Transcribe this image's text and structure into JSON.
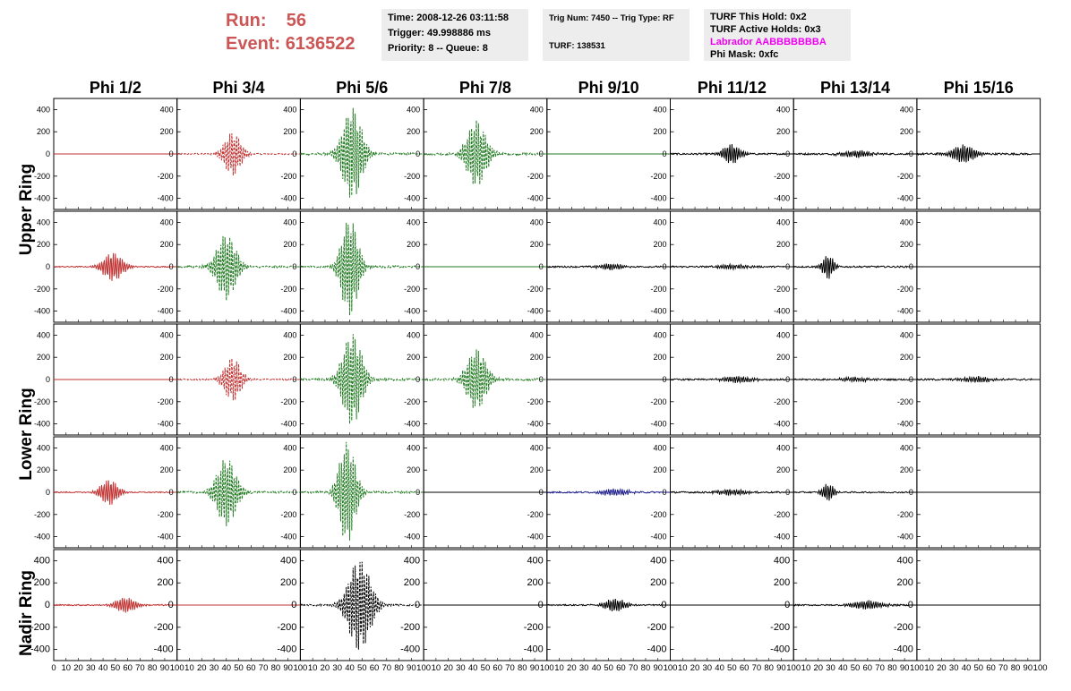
{
  "header": {
    "run_label": "Run:",
    "run_value": "56",
    "event_label": "Event:",
    "event_value": "6136522"
  },
  "info1": {
    "time": "Time: 2008-12-26 03:11:58",
    "trigger": "Trigger: 49.998886 ms",
    "priority": "Priority: 8 -- Queue: 8"
  },
  "info2": {
    "trig": "Trig Num: 7450 -- Trig Type: RF",
    "turf": "TURF: 138531"
  },
  "info3": {
    "hold": "TURF This Hold: 0x2",
    "active": "TURF Active Holds: 0x3",
    "labrador": "Labrador AABBBBBBBA",
    "mask": "Phi Mask: 0xfc"
  },
  "columns": [
    "Phi 1/2",
    "Phi 3/4",
    "Phi 5/6",
    "Phi 7/8",
    "Phi 9/10",
    "Phi 11/12",
    "Phi 13/14",
    "Phi 15/16"
  ],
  "rows": [
    "Upper Ring",
    "Upper Ring",
    "Lower Ring",
    "Lower Ring",
    "Nadir Ring"
  ],
  "ring_labels": [
    "Upper Ring",
    "Lower Ring",
    "Nadir Ring"
  ],
  "colors": {
    "red": "#c03030",
    "green": "#207a20",
    "black": "#000000",
    "blue": "#1a1a8a",
    "run": "#cc5555",
    "labrador": "#ee00ee"
  },
  "chart_data": {
    "type": "line",
    "description_axes": "Grid of 5 rows x 8 columns of waveform panels",
    "xlim": [
      0,
      100
    ],
    "ylim": [
      -500,
      500
    ],
    "y_ticks": [
      -400,
      -200,
      0,
      200,
      400
    ],
    "x_ticks": [
      0,
      10,
      20,
      30,
      40,
      50,
      60,
      70,
      80,
      90,
      100
    ],
    "x_tick_labels_row": [
      "0",
      "10",
      "20",
      "30",
      "40",
      "50",
      "60",
      "70",
      "80",
      "90",
      "100"
    ],
    "panels": [
      [
        {
          "color": "red",
          "amp": 0,
          "center": 50,
          "width": 8,
          "noise": 0
        },
        {
          "color": "red",
          "amp": 200,
          "center": 45,
          "width": 6,
          "noise": 12,
          "dashed": true
        },
        {
          "color": "green",
          "amp": 420,
          "center": 42,
          "width": 7,
          "noise": 20,
          "dashed": true
        },
        {
          "color": "green",
          "amp": 300,
          "center": 43,
          "width": 7,
          "noise": 20,
          "dashed": true
        },
        {
          "color": "green",
          "amp": 0,
          "center": 50,
          "width": 8,
          "noise": 0
        },
        {
          "color": "black",
          "amp": 90,
          "center": 50,
          "width": 6,
          "noise": 15
        },
        {
          "color": "black",
          "amp": 30,
          "center": 50,
          "width": 10,
          "noise": 15
        },
        {
          "color": "black",
          "amp": 80,
          "center": 38,
          "width": 8,
          "noise": 18
        }
      ],
      [
        {
          "color": "red",
          "amp": 130,
          "center": 48,
          "width": 7,
          "noise": 10
        },
        {
          "color": "green",
          "amp": 300,
          "center": 40,
          "width": 7,
          "noise": 18,
          "dashed": true
        },
        {
          "color": "green",
          "amp": 450,
          "center": 40,
          "width": 6,
          "noise": 20,
          "dashed": true
        },
        {
          "color": "green",
          "amp": 0,
          "center": 50,
          "width": 8,
          "noise": 0
        },
        {
          "color": "black",
          "amp": 30,
          "center": 52,
          "width": 8,
          "noise": 14
        },
        {
          "color": "black",
          "amp": 20,
          "center": 50,
          "width": 10,
          "noise": 14
        },
        {
          "color": "black",
          "amp": 110,
          "center": 28,
          "width": 4,
          "noise": 14
        },
        {
          "color": "black",
          "amp": 0,
          "center": 50,
          "width": 8,
          "noise": 0
        }
      ],
      [
        {
          "color": "red",
          "amp": 0,
          "center": 50,
          "width": 8,
          "noise": 0
        },
        {
          "color": "red",
          "amp": 200,
          "center": 45,
          "width": 6,
          "noise": 12,
          "dashed": true
        },
        {
          "color": "green",
          "amp": 420,
          "center": 42,
          "width": 7,
          "noise": 20,
          "dashed": true
        },
        {
          "color": "green",
          "amp": 280,
          "center": 43,
          "width": 7,
          "noise": 20,
          "dashed": true
        },
        {
          "color": "black",
          "amp": 0,
          "center": 50,
          "width": 8,
          "noise": 0
        },
        {
          "color": "black",
          "amp": 30,
          "center": 55,
          "width": 10,
          "noise": 14
        },
        {
          "color": "black",
          "amp": 20,
          "center": 50,
          "width": 10,
          "noise": 14
        },
        {
          "color": "black",
          "amp": 25,
          "center": 50,
          "width": 10,
          "noise": 16
        }
      ],
      [
        {
          "color": "red",
          "amp": 120,
          "center": 45,
          "width": 6,
          "noise": 10
        },
        {
          "color": "green",
          "amp": 310,
          "center": 40,
          "width": 7,
          "noise": 18,
          "dashed": true
        },
        {
          "color": "green",
          "amp": 460,
          "center": 38,
          "width": 6,
          "noise": 20,
          "dashed": true
        },
        {
          "color": "black",
          "amp": 0,
          "center": 50,
          "width": 8,
          "noise": 0
        },
        {
          "color": "blue",
          "amp": 30,
          "center": 55,
          "width": 10,
          "noise": 14
        },
        {
          "color": "black",
          "amp": 25,
          "center": 50,
          "width": 10,
          "noise": 14
        },
        {
          "color": "black",
          "amp": 80,
          "center": 28,
          "width": 4,
          "noise": 12
        },
        {
          "color": "black",
          "amp": 0,
          "center": 50,
          "width": 8,
          "noise": 0
        }
      ],
      [
        {
          "color": "red",
          "amp": 70,
          "center": 58,
          "width": 7,
          "noise": 12
        },
        {
          "color": "red",
          "amp": 0,
          "center": 50,
          "width": 8,
          "noise": 0
        },
        {
          "color": "black",
          "amp": 420,
          "center": 48,
          "width": 8,
          "noise": 16,
          "dashed": true
        },
        {
          "color": "black",
          "amp": 0,
          "center": 50,
          "width": 8,
          "noise": 0
        },
        {
          "color": "black",
          "amp": 60,
          "center": 55,
          "width": 7,
          "noise": 12
        },
        {
          "color": "black",
          "amp": 0,
          "center": 50,
          "width": 8,
          "noise": 0
        },
        {
          "color": "black",
          "amp": 40,
          "center": 60,
          "width": 10,
          "noise": 12
        },
        {
          "color": "black",
          "amp": 0,
          "center": 50,
          "width": 8,
          "noise": 0
        }
      ]
    ]
  }
}
